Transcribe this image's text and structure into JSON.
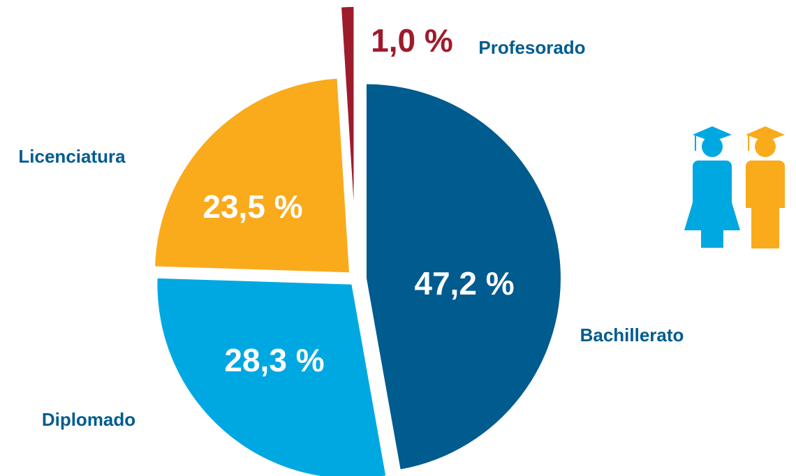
{
  "chart_data": {
    "type": "pie",
    "categories": [
      "Bachillerato",
      "Diplomado",
      "Licenciatura",
      "Profesorado"
    ],
    "values": [
      47.2,
      28.3,
      23.5,
      1.0
    ],
    "value_labels": [
      "47,2 %",
      "28,3 %",
      "23,5 %",
      "1,0 %"
    ],
    "colors": [
      "#005b8f",
      "#00a8e1",
      "#f9ab1b",
      "#9e1b2c"
    ],
    "start_angle": 0,
    "direction": "clockwise"
  }
}
